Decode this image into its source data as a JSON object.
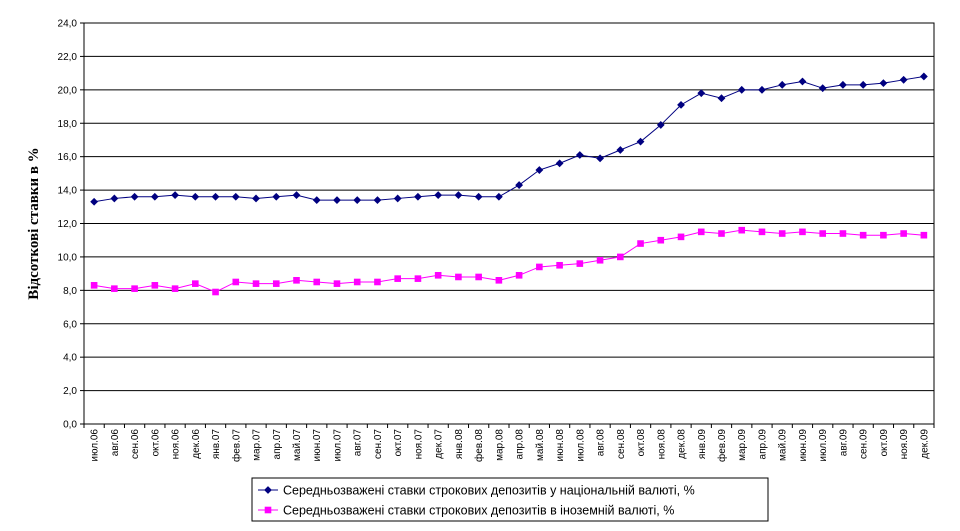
{
  "chart_data": {
    "type": "line",
    "title": "",
    "xlabel": "",
    "ylabel": "Відсоткові ставки в %",
    "ylim": [
      0,
      24
    ],
    "yticks": [
      "0,0",
      "2,0",
      "4,0",
      "6,0",
      "8,0",
      "10,0",
      "12,0",
      "14,0",
      "16,0",
      "18,0",
      "20,0",
      "22,0",
      "24,0"
    ],
    "categories": [
      "июл.06",
      "авг.06",
      "сен.06",
      "окт.06",
      "ноя.06",
      "дек.06",
      "янв.07",
      "фев.07",
      "мар.07",
      "апр.07",
      "май.07",
      "июн.07",
      "июл.07",
      "авг.07",
      "сен.07",
      "окт.07",
      "ноя.07",
      "дек.07",
      "янв.08",
      "фев.08",
      "мар.08",
      "апр.08",
      "май.08",
      "июн.08",
      "июл.08",
      "авг.08",
      "сен.08",
      "окт.08",
      "ноя.08",
      "дек.08",
      "янв.09",
      "фев.09",
      "мар.09",
      "апр.09",
      "май.09",
      "июн.09",
      "июл.09",
      "авг.09",
      "сен.09",
      "окт.09",
      "ноя.09",
      "дек.09"
    ],
    "grid": true,
    "legend_position": "bottom",
    "series": [
      {
        "name": "Середньозважені ставки строкових депозитів у національній валюті, %",
        "color": "#000080",
        "marker": "diamond",
        "values": [
          13.3,
          13.5,
          13.6,
          13.6,
          13.7,
          13.6,
          13.6,
          13.6,
          13.5,
          13.6,
          13.7,
          13.4,
          13.4,
          13.4,
          13.4,
          13.5,
          13.6,
          13.7,
          13.7,
          13.6,
          13.6,
          14.3,
          15.2,
          15.6,
          16.1,
          15.9,
          16.4,
          16.9,
          17.9,
          19.1,
          19.8,
          19.5,
          20.0,
          20.0,
          20.3,
          20.5,
          20.1,
          20.3,
          20.3,
          20.4,
          20.6,
          20.8
        ]
      },
      {
        "name": "Середньозважені ставки строкових депозитів в іноземній валюті, %",
        "color": "#FF00FF",
        "marker": "square",
        "values": [
          8.3,
          8.1,
          8.1,
          8.3,
          8.1,
          8.4,
          7.9,
          8.5,
          8.4,
          8.4,
          8.6,
          8.5,
          8.4,
          8.5,
          8.5,
          8.7,
          8.7,
          8.9,
          8.8,
          8.8,
          8.6,
          8.9,
          9.4,
          9.5,
          9.6,
          9.8,
          10.0,
          10.8,
          11.0,
          11.2,
          11.5,
          11.4,
          11.6,
          11.5,
          11.4,
          11.5,
          11.4,
          11.4,
          11.3,
          11.3,
          11.4,
          11.3
        ]
      }
    ]
  }
}
